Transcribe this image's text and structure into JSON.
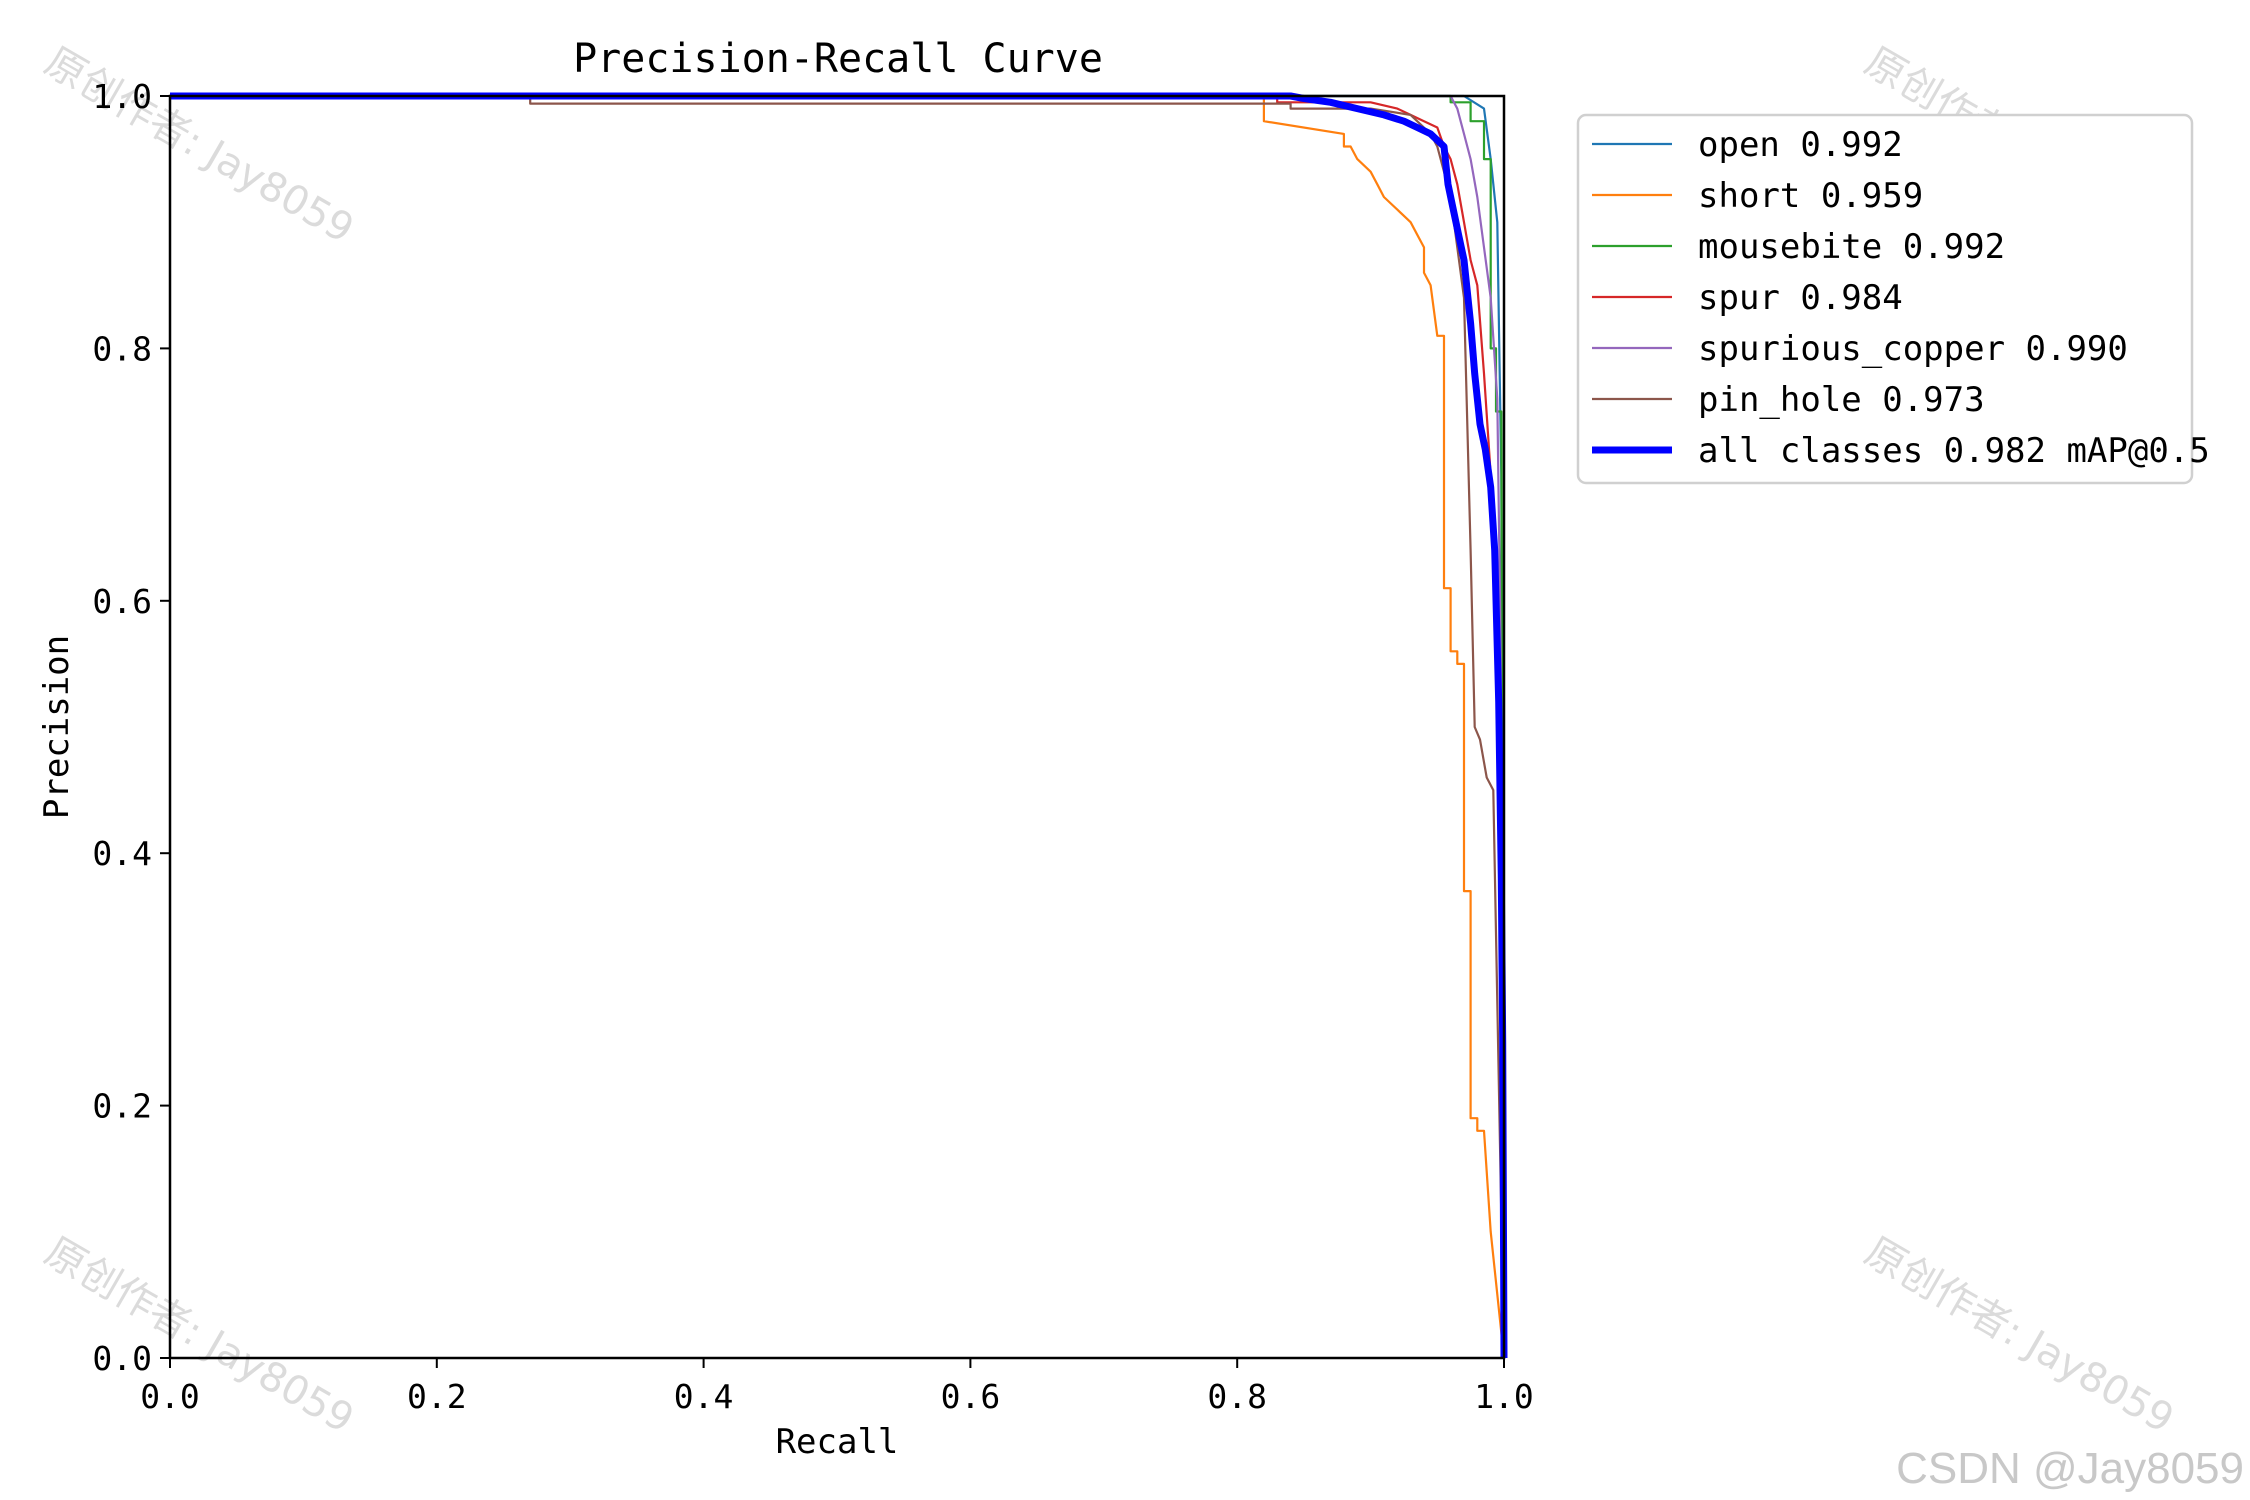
{
  "chart_data": {
    "type": "line",
    "title": "Precision-Recall Curve",
    "xlabel": "Recall",
    "ylabel": "Precision",
    "xlim": [
      0,
      1
    ],
    "ylim": [
      0,
      1
    ],
    "xticks": [
      "0.0",
      "0.2",
      "0.4",
      "0.6",
      "0.8",
      "1.0"
    ],
    "yticks": [
      "0.0",
      "0.2",
      "0.4",
      "0.6",
      "0.8",
      "1.0"
    ],
    "grid": false,
    "legend_placement": "outside right, top",
    "series": [
      {
        "name": "open 0.992",
        "color": "#1f77b4",
        "width": 2.2,
        "points": [
          [
            0,
            1
          ],
          [
            0.97,
            1
          ],
          [
            0.985,
            0.99
          ],
          [
            0.99,
            0.95
          ],
          [
            0.995,
            0.9
          ],
          [
            0.998,
            0.7
          ],
          [
            0.999,
            0.4
          ],
          [
            1.0,
            0.0
          ]
        ]
      },
      {
        "name": "short 0.959",
        "color": "#ff7f0e",
        "width": 2.2,
        "points": [
          [
            0,
            1
          ],
          [
            0.82,
            1
          ],
          [
            0.82,
            0.98
          ],
          [
            0.88,
            0.97
          ],
          [
            0.88,
            0.96
          ],
          [
            0.885,
            0.96
          ],
          [
            0.89,
            0.95
          ],
          [
            0.9,
            0.94
          ],
          [
            0.905,
            0.93
          ],
          [
            0.91,
            0.92
          ],
          [
            0.92,
            0.91
          ],
          [
            0.93,
            0.9
          ],
          [
            0.935,
            0.89
          ],
          [
            0.94,
            0.88
          ],
          [
            0.94,
            0.86
          ],
          [
            0.945,
            0.85
          ],
          [
            0.95,
            0.81
          ],
          [
            0.955,
            0.81
          ],
          [
            0.955,
            0.61
          ],
          [
            0.96,
            0.61
          ],
          [
            0.96,
            0.56
          ],
          [
            0.965,
            0.56
          ],
          [
            0.965,
            0.55
          ],
          [
            0.97,
            0.55
          ],
          [
            0.97,
            0.37
          ],
          [
            0.975,
            0.37
          ],
          [
            0.975,
            0.19
          ],
          [
            0.98,
            0.19
          ],
          [
            0.98,
            0.18
          ],
          [
            0.985,
            0.18
          ],
          [
            0.99,
            0.1
          ],
          [
            1.0,
            0.0
          ]
        ]
      },
      {
        "name": "mousebite 0.992",
        "color": "#2ca02c",
        "width": 2.2,
        "points": [
          [
            0,
            1
          ],
          [
            0.95,
            1
          ],
          [
            0.96,
            1
          ],
          [
            0.96,
            0.995
          ],
          [
            0.975,
            0.995
          ],
          [
            0.975,
            0.98
          ],
          [
            0.985,
            0.98
          ],
          [
            0.985,
            0.95
          ],
          [
            0.99,
            0.95
          ],
          [
            0.99,
            0.8
          ],
          [
            0.994,
            0.8
          ],
          [
            0.994,
            0.75
          ],
          [
            0.998,
            0.75
          ],
          [
            1.0,
            0.0
          ]
        ]
      },
      {
        "name": "spur 0.984",
        "color": "#d62728",
        "width": 2.2,
        "points": [
          [
            0,
            1
          ],
          [
            0.83,
            1
          ],
          [
            0.83,
            0.995
          ],
          [
            0.9,
            0.995
          ],
          [
            0.92,
            0.99
          ],
          [
            0.93,
            0.985
          ],
          [
            0.94,
            0.98
          ],
          [
            0.95,
            0.975
          ],
          [
            0.955,
            0.96
          ],
          [
            0.96,
            0.95
          ],
          [
            0.965,
            0.93
          ],
          [
            0.97,
            0.9
          ],
          [
            0.975,
            0.87
          ],
          [
            0.98,
            0.85
          ],
          [
            0.985,
            0.78
          ],
          [
            0.99,
            0.7
          ],
          [
            0.995,
            0.62
          ],
          [
            1.0,
            0.0
          ]
        ]
      },
      {
        "name": "spurious_copper 0.990",
        "color": "#9467bd",
        "width": 2.2,
        "points": [
          [
            0,
            1
          ],
          [
            0.96,
            1
          ],
          [
            0.965,
            0.99
          ],
          [
            0.97,
            0.97
          ],
          [
            0.975,
            0.95
          ],
          [
            0.98,
            0.92
          ],
          [
            0.985,
            0.88
          ],
          [
            0.99,
            0.84
          ],
          [
            0.995,
            0.76
          ],
          [
            0.997,
            0.6
          ],
          [
            0.999,
            0.4
          ],
          [
            1.0,
            0.0
          ]
        ]
      },
      {
        "name": "pin_hole 0.973",
        "color": "#8c564b",
        "width": 2.2,
        "points": [
          [
            0,
            1
          ],
          [
            0.27,
            1
          ],
          [
            0.27,
            0.994
          ],
          [
            0.84,
            0.994
          ],
          [
            0.84,
            0.99
          ],
          [
            0.9,
            0.99
          ],
          [
            0.93,
            0.985
          ],
          [
            0.945,
            0.97
          ],
          [
            0.95,
            0.96
          ],
          [
            0.955,
            0.94
          ],
          [
            0.96,
            0.92
          ],
          [
            0.965,
            0.88
          ],
          [
            0.97,
            0.84
          ],
          [
            0.975,
            0.64
          ],
          [
            0.978,
            0.5
          ],
          [
            0.982,
            0.49
          ],
          [
            0.987,
            0.46
          ],
          [
            0.992,
            0.45
          ],
          [
            1.0,
            0.0
          ]
        ]
      },
      {
        "name": "all classes 0.982 mAP@0.5",
        "color": "#0000ff",
        "width": 7,
        "points": [
          [
            0,
            1
          ],
          [
            0.84,
            1
          ],
          [
            0.85,
            0.998
          ],
          [
            0.87,
            0.995
          ],
          [
            0.89,
            0.99
          ],
          [
            0.91,
            0.985
          ],
          [
            0.925,
            0.98
          ],
          [
            0.935,
            0.975
          ],
          [
            0.945,
            0.97
          ],
          [
            0.95,
            0.965
          ],
          [
            0.955,
            0.96
          ],
          [
            0.958,
            0.93
          ],
          [
            0.962,
            0.91
          ],
          [
            0.966,
            0.89
          ],
          [
            0.97,
            0.87
          ],
          [
            0.975,
            0.82
          ],
          [
            0.978,
            0.78
          ],
          [
            0.982,
            0.74
          ],
          [
            0.986,
            0.72
          ],
          [
            0.99,
            0.69
          ],
          [
            0.993,
            0.64
          ],
          [
            0.996,
            0.52
          ],
          [
            0.998,
            0.38
          ],
          [
            0.999,
            0.25
          ],
          [
            1.0,
            0.0
          ]
        ]
      }
    ]
  },
  "watermark": "原创作者: Jay8059",
  "credit": "CSDN @Jay8059"
}
